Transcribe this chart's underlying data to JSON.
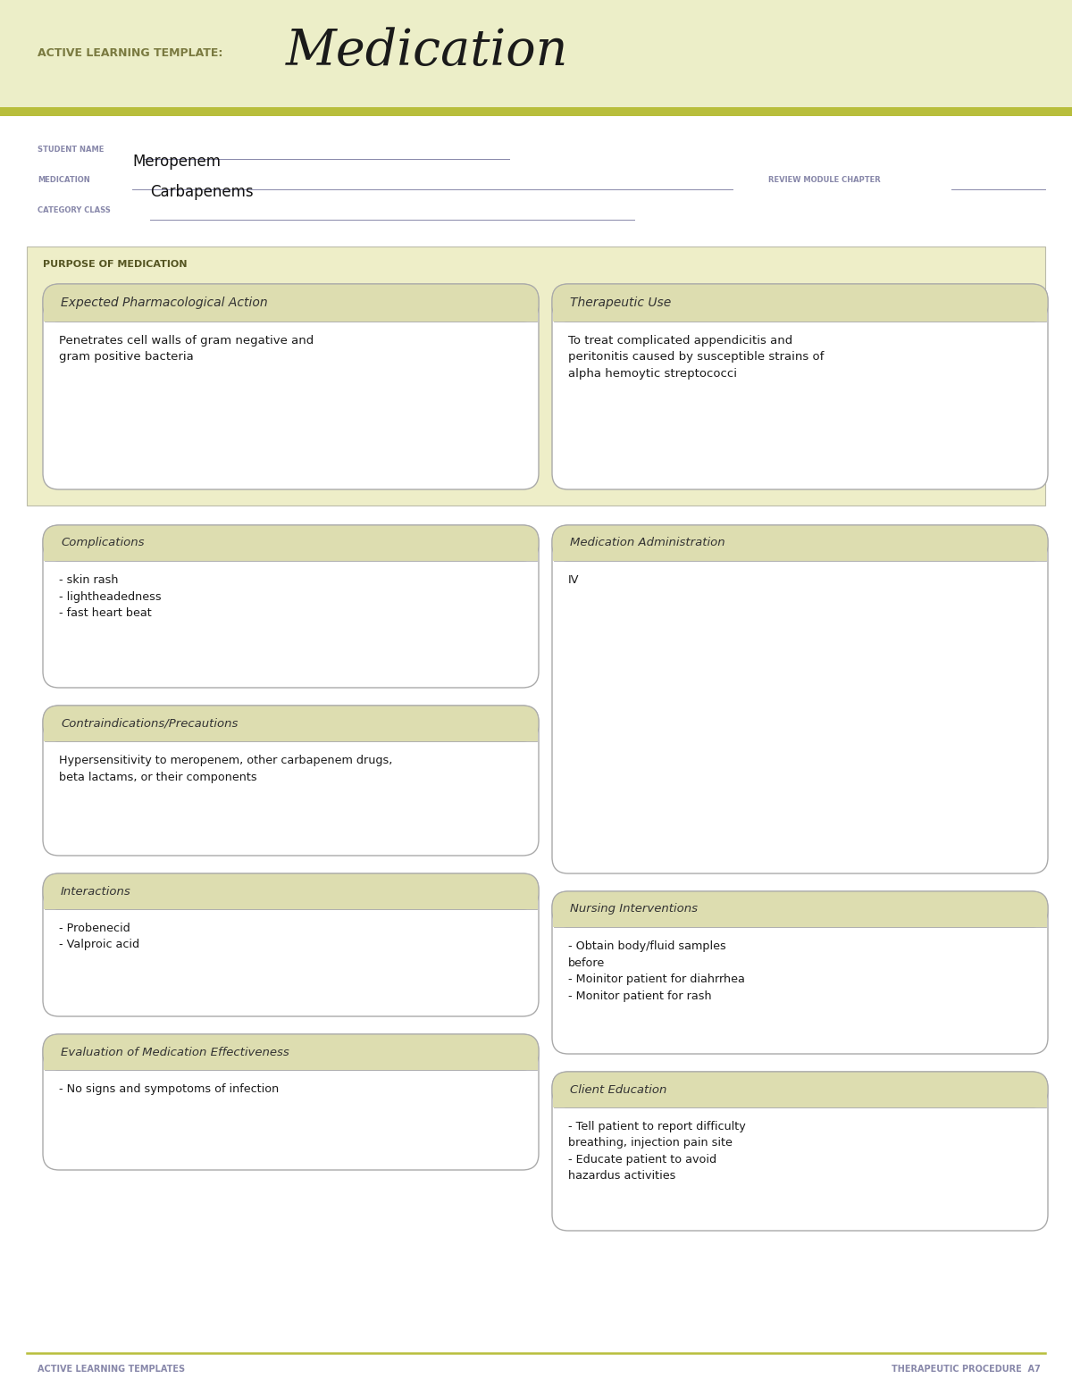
{
  "page_bg": "#ffffff",
  "header_bg": "#eceec8",
  "header_stripe_color": "#b8be3c",
  "header_label": "ACTIVE LEARNING TEMPLATE:",
  "header_title": "Medication",
  "header_label_color": "#7a7a40",
  "header_title_color": "#1a1a1a",
  "student_name_label": "STUDENT NAME",
  "medication_label": "MEDICATION",
  "medication_value": "Meropenem",
  "review_label": "REVIEW MODULE CHAPTER",
  "category_label": "CATEGORY CLASS",
  "category_value": "Carbapenems",
  "label_color": "#8888aa",
  "underline_color": "#8888aa",
  "purpose_label": "PURPOSE OF MEDICATION",
  "purpose_label_color": "#555522",
  "box_bg": "#eeeec8",
  "box_border": "#aaaaaa",
  "box_header_bg": "#ddddb0",
  "section_title_color": "#333333",
  "body_text_color": "#1a1a1a",
  "sections": [
    {
      "title": "Expected Pharmacological Action",
      "body": "Penetrates cell walls of gram negative and\ngram positive bacteria"
    },
    {
      "title": "Therapeutic Use",
      "body": "To treat complicated appendicitis and\nperitonitis caused by susceptible strains of\nalpha hemoytic streptococci"
    },
    {
      "title": "Complications",
      "body": "- skin rash\n- lightheadedness\n- fast heart beat"
    },
    {
      "title": "Medication Administration",
      "body": "IV"
    },
    {
      "title": "Contraindications/Precautions",
      "body": "Hypersensitivity to meropenem, other carbapenem drugs,\nbeta lactams, or their components"
    },
    {
      "title": "Nursing Interventions",
      "body": "- Obtain body/fluid samples\nbefore\n- Moinitor patient for diahrrhea\n- Monitor patient for rash"
    },
    {
      "title": "Interactions",
      "body": "- Probenecid\n- Valproic acid"
    },
    {
      "title": "Client Education",
      "body": "- Tell patient to report difficulty\nbreathing, injection pain site\n- Educate patient to avoid\nhazardus activities"
    },
    {
      "title": "Evaluation of Medication Effectiveness",
      "body": "- No signs and sympotoms of infection"
    }
  ],
  "footer_left": "ACTIVE LEARNING TEMPLATES",
  "footer_right": "THERAPEUTIC PROCEDURE  A7",
  "footer_color": "#8888aa"
}
